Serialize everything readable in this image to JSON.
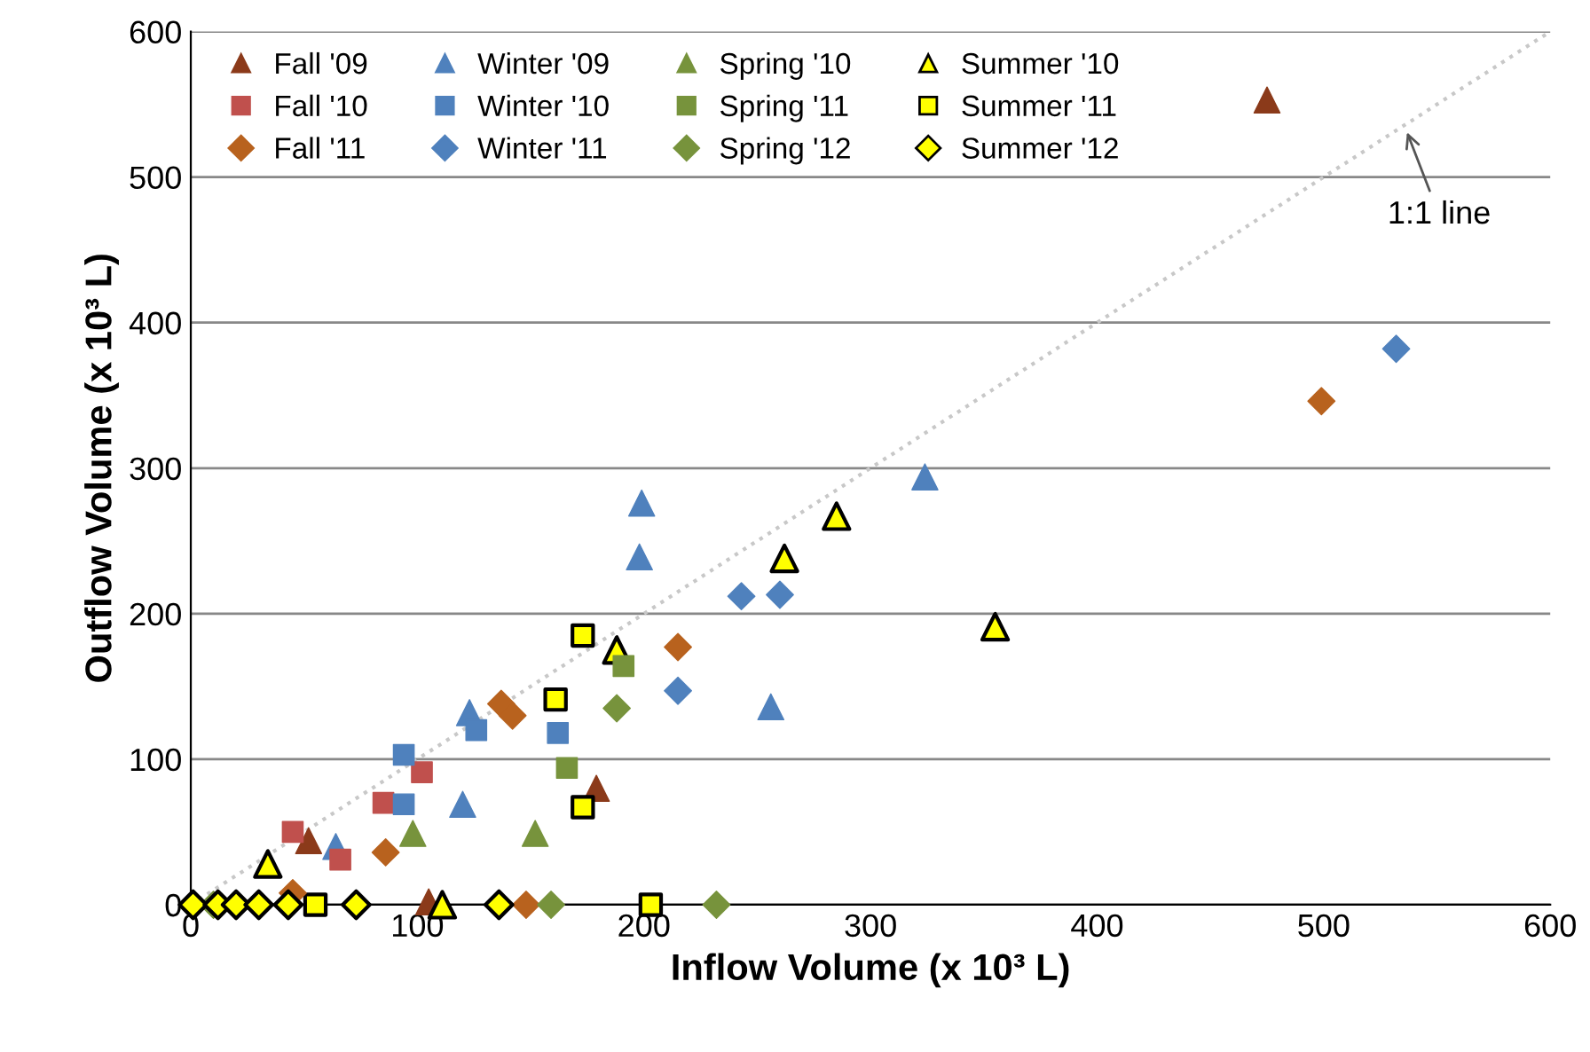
{
  "chart_data": {
    "type": "scatter",
    "xlabel": "Inflow Volume (x 10³ L)",
    "ylabel": "Outflow Volume (x 10³ L)",
    "xlim": [
      0,
      600
    ],
    "ylim": [
      0,
      600
    ],
    "xticks": [
      0,
      100,
      200,
      300,
      400,
      500,
      600
    ],
    "yticks": [
      0,
      100,
      200,
      300,
      400,
      500,
      600
    ],
    "grid": "y",
    "legend": "top left",
    "annotations": [
      {
        "text": "1:1 line",
        "x": 536,
        "y": 534
      }
    ],
    "series": [
      {
        "name": "Fall '09",
        "color": "#8b3a1a",
        "marker": "triangle",
        "x": [
          52,
          179,
          475,
          105
        ],
        "values": [
          44,
          80,
          553,
          2
        ]
      },
      {
        "name": "Winter '09",
        "color": "#4f81bd",
        "marker": "triangle",
        "x": [
          64,
          120,
          123,
          198,
          199,
          256,
          324
        ],
        "values": [
          40,
          69,
          132,
          239,
          276,
          136,
          294
        ]
      },
      {
        "name": "Spring '10",
        "color": "#77933c",
        "marker": "triangle",
        "x": [
          98,
          152
        ],
        "values": [
          49,
          49
        ]
      },
      {
        "name": "Summer '10",
        "color": "#ffff00",
        "marker": "triangle",
        "x": [
          34,
          111,
          188,
          262,
          285,
          355
        ],
        "values": [
          28,
          0,
          175,
          238,
          267,
          191
        ]
      },
      {
        "name": "Fall '10",
        "color": "#c0504d",
        "marker": "square",
        "x": [
          45,
          66,
          85,
          102
        ],
        "values": [
          50,
          31,
          70,
          91
        ]
      },
      {
        "name": "Winter '10",
        "color": "#4f81bd",
        "marker": "square",
        "x": [
          94,
          94,
          126,
          162
        ],
        "values": [
          69,
          103,
          120,
          118
        ]
      },
      {
        "name": "Spring '11",
        "color": "#77933c",
        "marker": "square",
        "x": [
          166,
          191
        ],
        "values": [
          94,
          164
        ]
      },
      {
        "name": "Summer '11",
        "color": "#ffff00",
        "marker": "square",
        "x": [
          55,
          161,
          173,
          173,
          203
        ],
        "values": [
          0,
          141,
          67,
          185,
          0
        ]
      },
      {
        "name": "Fall '11",
        "color": "#b8621e",
        "marker": "diamond",
        "x": [
          86,
          137,
          142,
          215,
          148,
          499,
          45
        ],
        "values": [
          36,
          138,
          130,
          177,
          0,
          346,
          8
        ]
      },
      {
        "name": "Winter '11",
        "color": "#4f81bd",
        "marker": "diamond",
        "x": [
          215,
          243,
          260,
          532
        ],
        "values": [
          147,
          212,
          213,
          382
        ]
      },
      {
        "name": "Spring '12",
        "color": "#77933c",
        "marker": "diamond",
        "x": [
          188,
          159,
          232,
          10
        ],
        "values": [
          135,
          0,
          0,
          0
        ]
      },
      {
        "name": "Summer '12",
        "color": "#ffff00",
        "marker": "diamond",
        "x": [
          1,
          12,
          20,
          30,
          43,
          73,
          136
        ],
        "values": [
          0,
          0,
          0,
          0,
          0,
          0,
          0
        ]
      },
      {
        "type": "line",
        "color": "#c8c8c8",
        "line_style": "dotted",
        "marker": "none",
        "x": [
          0,
          600
        ],
        "values": [
          0,
          600
        ]
      }
    ]
  }
}
